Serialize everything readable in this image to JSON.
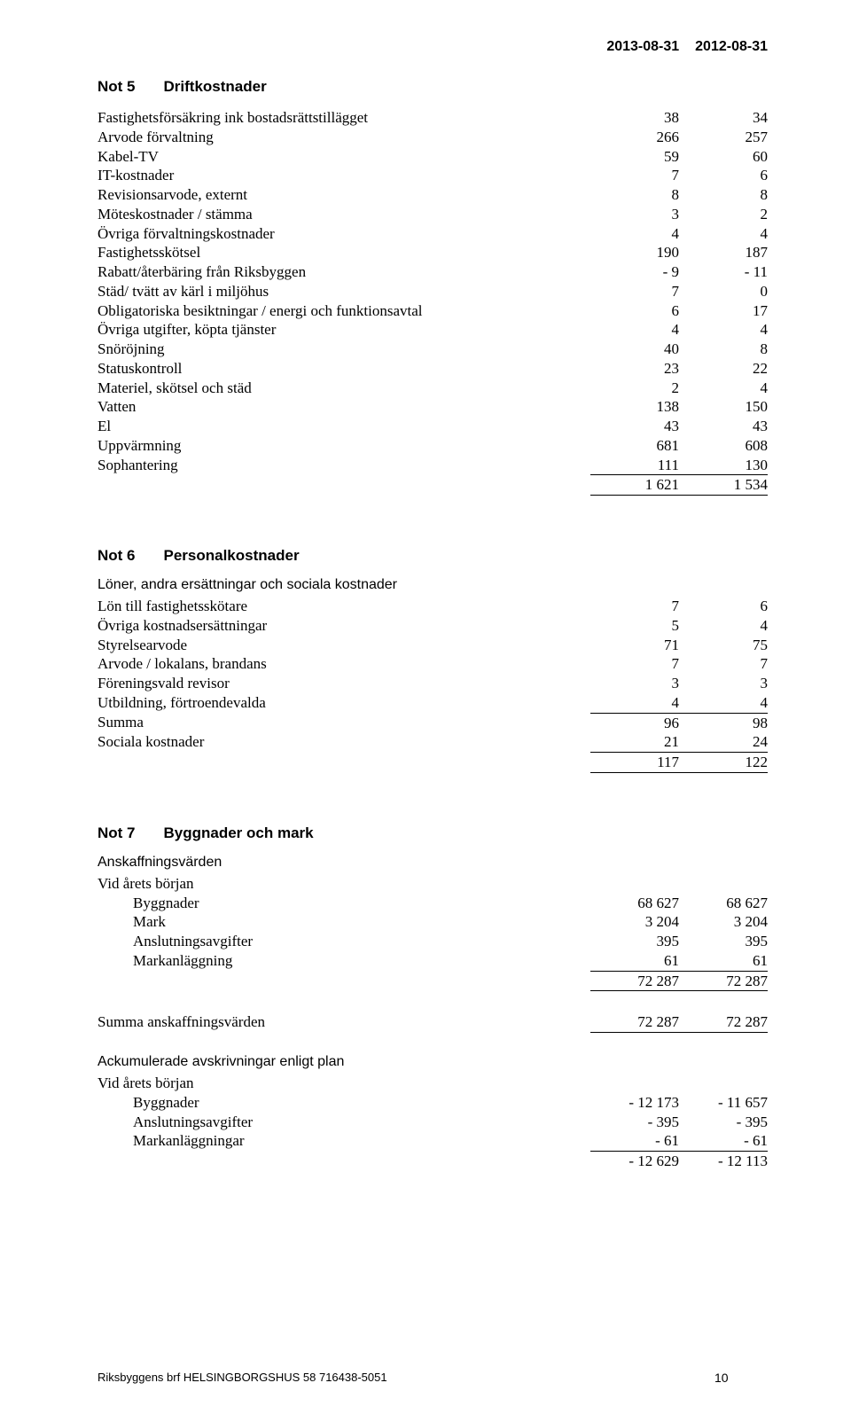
{
  "dates": {
    "d1": "2013-08-31",
    "d2": "2012-08-31"
  },
  "not5": {
    "num": "Not 5",
    "title": "Driftkostnader",
    "rows": [
      {
        "l": "Fastighetsförsäkring ink bostadsrättstillägget",
        "a": "38",
        "b": "34"
      },
      {
        "l": "Arvode förvaltning",
        "a": "266",
        "b": "257"
      },
      {
        "l": "Kabel-TV",
        "a": "59",
        "b": "60"
      },
      {
        "l": "IT-kostnader",
        "a": "7",
        "b": "6"
      },
      {
        "l": "Revisionsarvode, externt",
        "a": "8",
        "b": "8"
      },
      {
        "l": "Möteskostnader / stämma",
        "a": "3",
        "b": "2"
      },
      {
        "l": "Övriga förvaltningskostnader",
        "a": "4",
        "b": "4"
      },
      {
        "l": "Fastighetsskötsel",
        "a": "190",
        "b": "187"
      },
      {
        "l": "Rabatt/återbäring från Riksbyggen",
        "a": "- 9",
        "b": "- 11"
      },
      {
        "l": "Städ/ tvätt av kärl i miljöhus",
        "a": "7",
        "b": "0"
      },
      {
        "l": "Obligatoriska besiktningar / energi och funktionsavtal",
        "a": "6",
        "b": "17"
      },
      {
        "l": "Övriga utgifter, köpta tjänster",
        "a": "4",
        "b": "4"
      },
      {
        "l": "Snöröjning",
        "a": "40",
        "b": "8"
      },
      {
        "l": "Statuskontroll",
        "a": "23",
        "b": "22"
      },
      {
        "l": "Materiel, skötsel och städ",
        "a": "2",
        "b": "4"
      },
      {
        "l": "Vatten",
        "a": "138",
        "b": "150"
      },
      {
        "l": "El",
        "a": "43",
        "b": "43"
      },
      {
        "l": "Uppvärmning",
        "a": "681",
        "b": "608"
      },
      {
        "l": "Sophantering",
        "a": "111",
        "b": "130"
      }
    ],
    "total": {
      "a": "1 621",
      "b": "1 534"
    }
  },
  "not6": {
    "num": "Not 6",
    "title": "Personalkostnader",
    "sub": "Löner, andra ersättningar och sociala kostnader",
    "rows": [
      {
        "l": "Lön till fastighetsskötare",
        "a": "7",
        "b": "6"
      },
      {
        "l": "Övriga kostnadsersättningar",
        "a": "5",
        "b": "4"
      },
      {
        "l": "Styrelsearvode",
        "a": "71",
        "b": "75"
      },
      {
        "l": "Arvode / lokalans, brandans",
        "a": "7",
        "b": "7"
      },
      {
        "l": "Föreningsvald revisor",
        "a": "3",
        "b": "3"
      },
      {
        "l": "Utbildning, förtroendevalda",
        "a": "4",
        "b": "4"
      }
    ],
    "summa": {
      "l": "Summa",
      "a": "96",
      "b": "98"
    },
    "soc": {
      "l": "Sociala kostnader",
      "a": "21",
      "b": "24"
    },
    "total": {
      "a": "117",
      "b": "122"
    }
  },
  "not7": {
    "num": "Not 7",
    "title": "Byggnader och mark",
    "ansk_head": "Anskaffningsvärden",
    "vid": "Vid årets början",
    "ansk_rows": [
      {
        "l": "Byggnader",
        "a": "68 627",
        "b": "68 627"
      },
      {
        "l": "Mark",
        "a": "3 204",
        "b": "3 204"
      },
      {
        "l": "Anslutningsavgifter",
        "a": "395",
        "b": "395"
      },
      {
        "l": "Markanläggning",
        "a": "61",
        "b": "61"
      }
    ],
    "ansk_sub": {
      "a": "72 287",
      "b": "72 287"
    },
    "ansk_sum": {
      "l": "Summa anskaffningsvärden",
      "a": "72 287",
      "b": "72 287"
    },
    "ack_head": "Ackumulerade avskrivningar enligt plan",
    "ack_rows": [
      {
        "l": "Byggnader",
        "a": "- 12 173",
        "b": "- 11 657"
      },
      {
        "l": "Anslutningsavgifter",
        "a": "- 395",
        "b": "- 395"
      },
      {
        "l": "Markanläggningar",
        "a": "- 61",
        "b": "- 61"
      }
    ],
    "ack_sub": {
      "a": "- 12 629",
      "b": "- 12 113"
    }
  },
  "footer": {
    "text": "Riksbyggens brf HELSINGBORGSHUS 58 716438-5051",
    "page": "10"
  }
}
